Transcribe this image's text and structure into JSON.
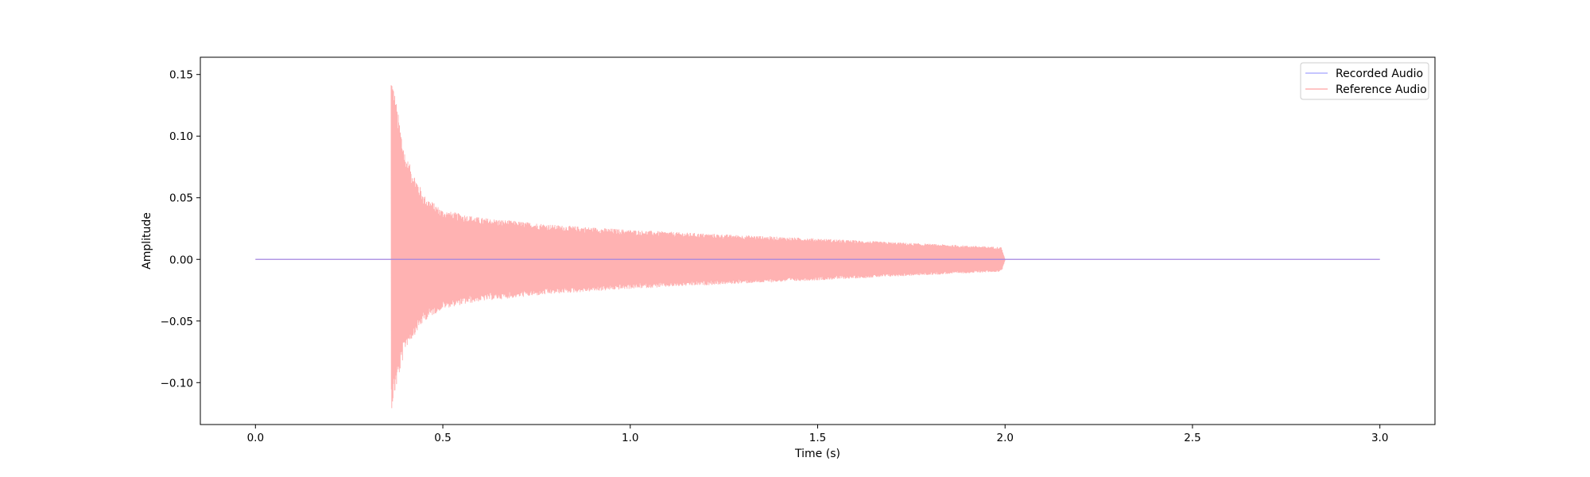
{
  "chart_data": {
    "type": "line",
    "title": "",
    "xlabel": "Time (s)",
    "ylabel": "Amplitude",
    "xlim": [
      -0.147,
      3.147
    ],
    "ylim": [
      -0.134,
      0.164
    ],
    "xticks": [
      0.0,
      0.5,
      1.0,
      1.5,
      2.0,
      2.5,
      3.0
    ],
    "xtick_labels": [
      "0.0",
      "0.5",
      "1.0",
      "1.5",
      "2.0",
      "2.5",
      "3.0"
    ],
    "yticks": [
      -0.1,
      -0.05,
      0.0,
      0.05,
      0.1,
      0.15
    ],
    "ytick_labels": [
      "−0.10",
      "−0.05",
      "0.00",
      "0.05",
      "0.10",
      "0.15"
    ],
    "grid": false,
    "legend_position": "top-right",
    "series": [
      {
        "name": "Recorded Audio",
        "color": "#6666ff",
        "alpha": 0.5,
        "x": [
          0.0,
          3.0
        ],
        "y": [
          0.0,
          0.0
        ]
      },
      {
        "name": "Reference Audio",
        "color": "#ff6666",
        "alpha": 0.5,
        "onset": 0.363,
        "end": 2.0,
        "x": [
          0.0,
          0.363,
          0.365,
          0.38,
          0.4,
          0.45,
          0.5,
          0.6,
          0.7,
          0.8,
          1.0,
          1.2,
          1.5,
          1.7,
          1.99,
          2.0,
          3.0
        ],
        "upper_envelope": [
          0.0,
          0.151,
          0.148,
          0.12,
          0.085,
          0.052,
          0.04,
          0.034,
          0.031,
          0.028,
          0.024,
          0.021,
          0.017,
          0.014,
          0.01,
          0.0,
          0.0
        ],
        "lower_envelope": [
          0.0,
          -0.121,
          -0.118,
          -0.098,
          -0.072,
          -0.05,
          -0.04,
          -0.034,
          -0.031,
          -0.028,
          -0.024,
          -0.021,
          -0.017,
          -0.014,
          -0.01,
          0.0,
          0.0
        ]
      }
    ]
  }
}
